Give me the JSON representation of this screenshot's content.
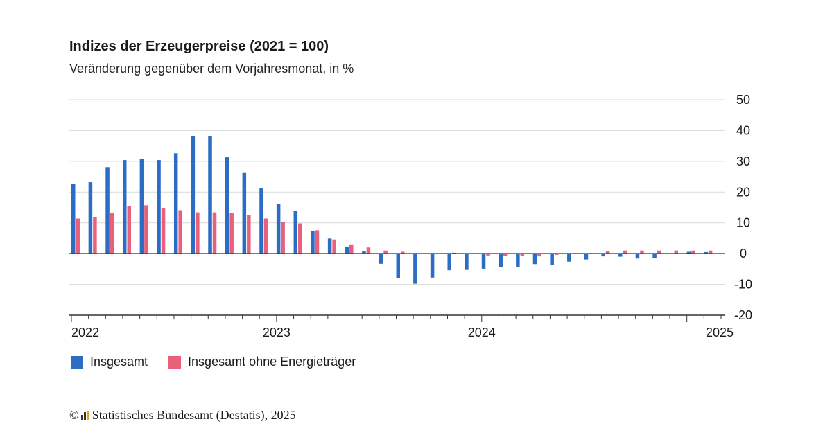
{
  "header": {
    "title": "Indizes der Erzeugerpreise (2021 = 100)",
    "subtitle": "Veränderung gegenüber dem Vorjahresmonat, in %"
  },
  "footer": {
    "copyright_symbol": "©",
    "source": "Statistisches Bundesamt (Destatis), 2025"
  },
  "colors": {
    "series_1": "#2b6cc4",
    "series_2": "#e8607a",
    "grid": "#d9d9d9",
    "axis": "#333333"
  },
  "chart_data": {
    "type": "bar",
    "title": "Indizes der Erzeugerpreise (2021 = 100)",
    "subtitle": "Veränderung gegenüber dem Vorjahresmonat, in %",
    "x_tick_labels": [
      "2022",
      "2023",
      "2024",
      "2025"
    ],
    "x_tick_label_months": [
      0,
      12,
      24,
      36
    ],
    "yticks": [
      50,
      40,
      30,
      20,
      10,
      0,
      -10,
      -20
    ],
    "ylim": [
      -20,
      50
    ],
    "y_axis_position": "right",
    "grid": true,
    "legend_position": "bottom-left",
    "series": [
      {
        "name": "Insgesamt",
        "color": "#2b6cc4",
        "values": [
          22.6,
          23.2,
          28.1,
          30.4,
          30.7,
          30.4,
          32.6,
          38.3,
          38.2,
          31.3,
          26.2,
          21.2,
          16.1,
          13.9,
          7.3,
          4.9,
          2.3,
          0.9,
          -3.3,
          -8.0,
          -9.8,
          -7.8,
          -5.4,
          -5.3,
          -4.9,
          -4.4,
          -4.3,
          -3.4,
          -3.6,
          -2.6,
          -1.9,
          -0.9,
          -1.0,
          -1.6,
          -1.4,
          0.1,
          0.6,
          0.5
        ]
      },
      {
        "name": "Insgesamt ohne Energieträger",
        "color": "#e8607a",
        "values": [
          11.4,
          11.8,
          13.2,
          15.4,
          15.7,
          14.7,
          14.1,
          13.4,
          13.4,
          13.1,
          12.6,
          11.4,
          10.4,
          9.8,
          7.6,
          4.6,
          3.0,
          2.0,
          1.0,
          0.6,
          -0.1,
          0.1,
          0.3,
          -0.1,
          -0.6,
          -0.8,
          -0.8,
          -0.9,
          -0.4,
          -0.1,
          0.2,
          0.8,
          1.0,
          1.0,
          1.0,
          1.0,
          1.0,
          1.0
        ]
      }
    ]
  }
}
